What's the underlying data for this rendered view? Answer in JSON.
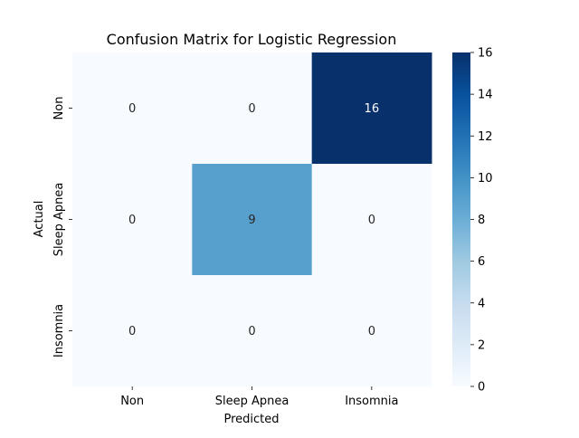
{
  "chart_data": {
    "type": "heatmap",
    "title": "Confusion Matrix for Logistic Regression",
    "xlabel": "Predicted",
    "ylabel": "Actual",
    "x_categories": [
      "Non",
      "Sleep Apnea",
      "Insomnia"
    ],
    "y_categories": [
      "Non",
      "Sleep Apnea",
      "Insomnia"
    ],
    "values": [
      [
        0,
        0,
        16
      ],
      [
        0,
        9,
        0
      ],
      [
        0,
        0,
        0
      ]
    ],
    "colorbar": {
      "range": [
        0,
        16
      ],
      "ticks": [
        "0",
        "2",
        "4",
        "6",
        "8",
        "10",
        "12",
        "14",
        "16"
      ],
      "colormap": "Blues",
      "low_color": "#f7fbff",
      "high_color": "#08306b"
    },
    "annotations": true,
    "grid": false
  }
}
